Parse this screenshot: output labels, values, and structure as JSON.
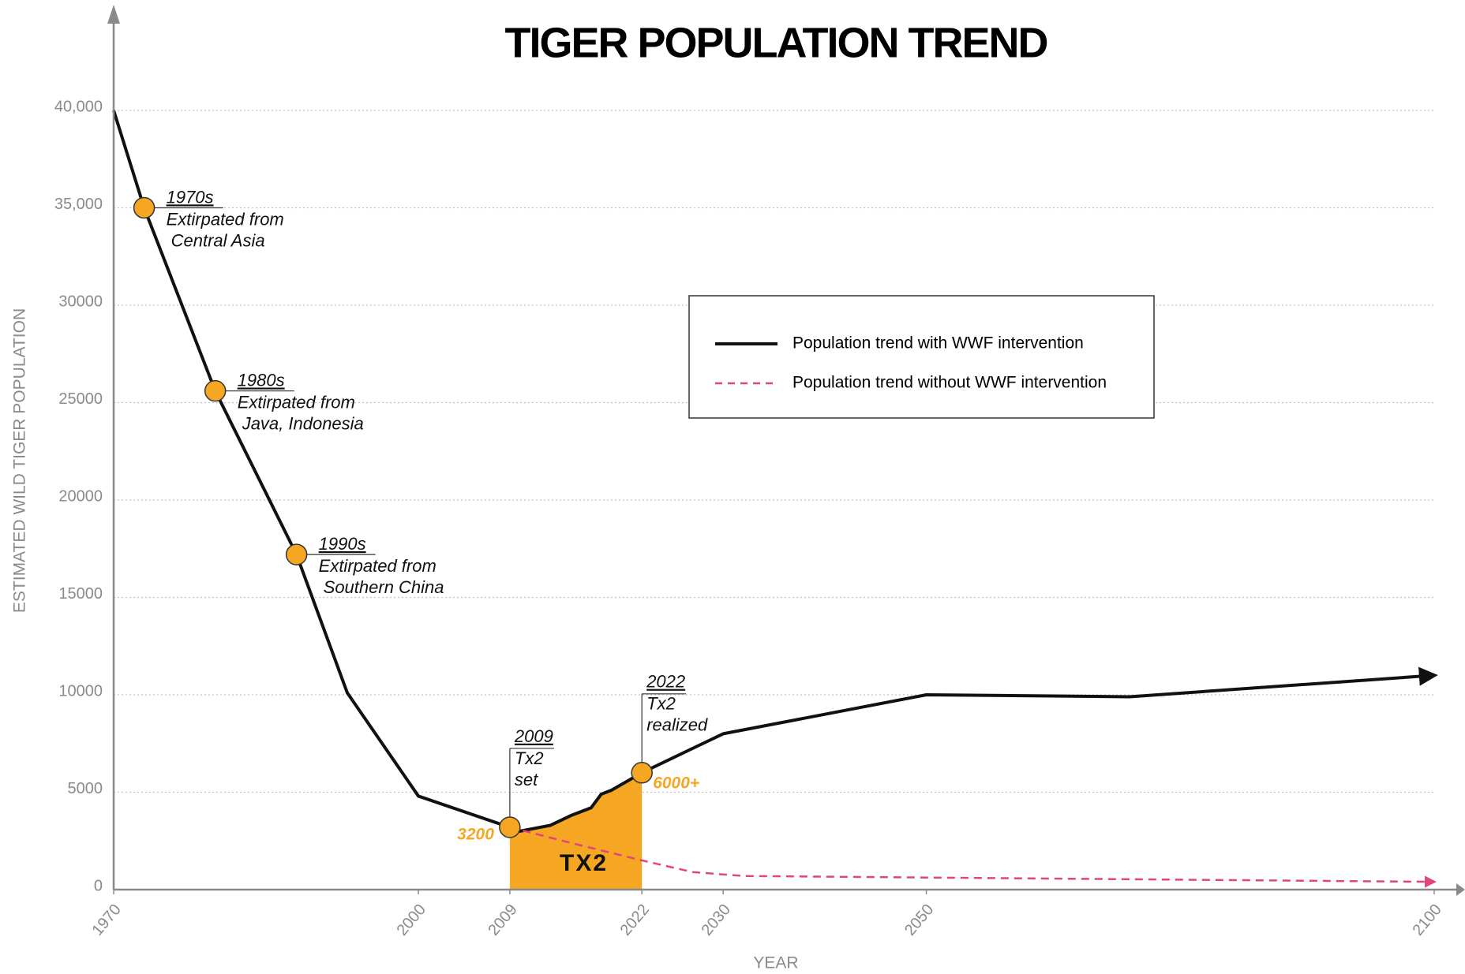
{
  "chart_data": {
    "type": "line",
    "title": "TIGER POPULATION TREND",
    "x_label": "YEAR",
    "y_label": "ESTIMATED WILD TIGER POPULATION",
    "xlim": [
      1970,
      2100
    ],
    "xticks": [
      1970,
      2000,
      2009,
      2022,
      2030,
      2050,
      2100
    ],
    "ylim": [
      0,
      40000
    ],
    "yticks": [
      0,
      5000,
      10000,
      15000,
      20000,
      {
        "value": 25000,
        "label": "25000"
      },
      30000,
      {
        "value": 35000,
        "label": "35,000"
      },
      {
        "value": 40000,
        "label": "40,000"
      }
    ],
    "grid": true,
    "series": [
      {
        "name": "Population trend with WWF intervention",
        "color": "#111111",
        "style": "solid",
        "x": [
          1970,
          1973,
          1980,
          1988,
          1993,
          2000,
          2009,
          2010,
          2012,
          2013,
          2015,
          2017,
          2018,
          2019,
          2022,
          2030,
          2050,
          2070,
          2100
        ],
        "values": [
          40000,
          35000,
          25600,
          17200,
          10100,
          4800,
          3200,
          3000,
          3200,
          3300,
          3800,
          4200,
          4900,
          5100,
          6000,
          8000,
          10000,
          9900,
          11000
        ]
      },
      {
        "name": "Population trend without WWF intervention",
        "color": "#e0457b",
        "style": "dashed",
        "x": [
          2009,
          2015,
          2022,
          2027,
          2032,
          2100
        ],
        "values": [
          3200,
          2400,
          1500,
          900,
          700,
          400
        ]
      }
    ],
    "shaded_range": [
      2009,
      2022
    ],
    "shaded_color": "#f5a623",
    "shaded_label": "TX2",
    "marker_color": "#f5a623",
    "annotations": [
      {
        "x": 1973,
        "y": 35000,
        "title": "1970s",
        "lines": [
          "Extirpated from",
          "Central Asia"
        ]
      },
      {
        "x": 1980,
        "y": 25600,
        "title": "1980s",
        "lines": [
          "Extirpated from",
          "Java, Indonesia"
        ]
      },
      {
        "x": 1988,
        "y": 17200,
        "title": "1990s",
        "lines": [
          "Extirpated from",
          "Southern China"
        ]
      },
      {
        "x": 2009,
        "y": 3200,
        "title": "2009",
        "lines": [
          "Tx2",
          "set"
        ]
      },
      {
        "x": 2022,
        "y": 6000,
        "title": "2022",
        "lines": [
          "Tx2",
          "realized"
        ],
        "value_label": "6000+"
      }
    ]
  }
}
